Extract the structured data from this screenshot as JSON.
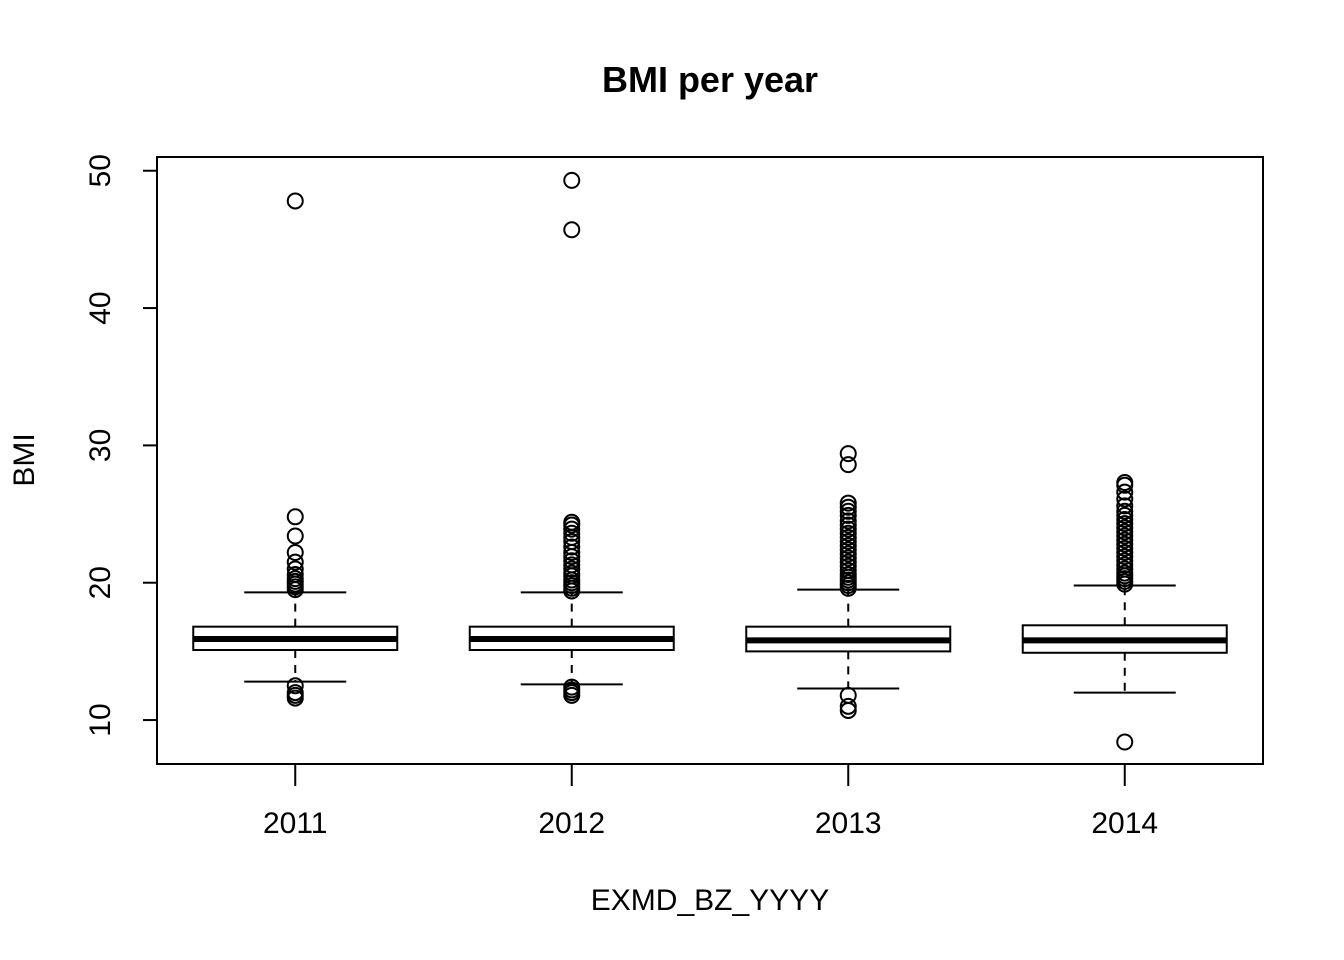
{
  "chart_data": {
    "type": "boxplot",
    "title": "BMI per year",
    "xlabel": "EXMD_BZ_YYYY",
    "ylabel": "BMI",
    "categories": [
      "2011",
      "2012",
      "2013",
      "2014"
    ],
    "y_ticks": [
      10,
      20,
      30,
      40,
      50
    ],
    "ylim": [
      6.8,
      51
    ],
    "grid": false,
    "legend": "none",
    "boxes": [
      {
        "category": "2011",
        "whisker_low": 12.8,
        "q1": 15.1,
        "median": 15.9,
        "q3": 16.8,
        "whisker_high": 19.3,
        "outliers": [
          47.8,
          24.8,
          23.4,
          22.2,
          21.5,
          21.0,
          20.6,
          20.3,
          20.1,
          19.9,
          19.7,
          19.5,
          12.5,
          12.0,
          11.8,
          11.6
        ]
      },
      {
        "category": "2012",
        "whisker_low": 12.6,
        "q1": 15.1,
        "median": 15.9,
        "q3": 16.8,
        "whisker_high": 19.3,
        "outliers": [
          49.3,
          45.7,
          24.4,
          24.2,
          23.9,
          23.6,
          23.3,
          23.0,
          22.6,
          22.2,
          21.9,
          21.6,
          21.3,
          21.0,
          20.7,
          20.5,
          20.2,
          20.0,
          19.8,
          19.6,
          19.4,
          12.4,
          12.2,
          12.0,
          11.8
        ]
      },
      {
        "category": "2013",
        "whisker_low": 12.3,
        "q1": 15.0,
        "median": 15.8,
        "q3": 16.8,
        "whisker_high": 19.5,
        "outliers": [
          29.4,
          28.6,
          25.8,
          25.5,
          25.2,
          24.9,
          24.5,
          24.2,
          23.9,
          23.6,
          23.3,
          23.0,
          22.7,
          22.4,
          22.1,
          21.8,
          21.5,
          21.2,
          20.9,
          20.6,
          20.4,
          20.2,
          20.0,
          19.8,
          19.6,
          11.8,
          11.0,
          10.7
        ]
      },
      {
        "category": "2014",
        "whisker_low": 12.0,
        "q1": 14.9,
        "median": 15.8,
        "q3": 16.9,
        "whisker_high": 19.8,
        "outliers": [
          27.3,
          27.1,
          26.6,
          26.1,
          25.6,
          25.2,
          24.9,
          24.6,
          24.3,
          24.0,
          23.7,
          23.4,
          23.1,
          22.8,
          22.5,
          22.2,
          21.9,
          21.6,
          21.3,
          21.0,
          20.7,
          20.5,
          20.3,
          20.1,
          19.9,
          8.4
        ]
      }
    ]
  }
}
